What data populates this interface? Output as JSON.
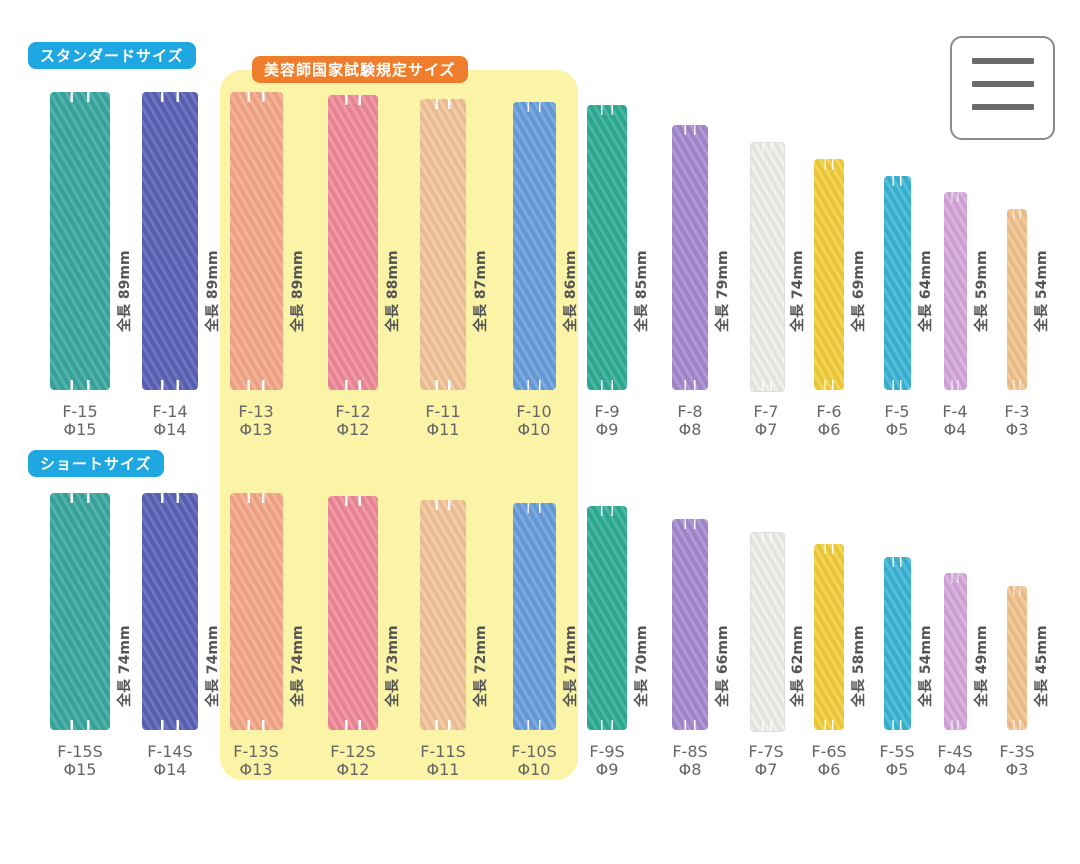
{
  "labels": {
    "standard": "スタンダードサイズ",
    "exam": "美容師国家試験規定サイズ",
    "short": "ショートサイズ"
  },
  "menu": {
    "icon": "hamburger-menu-icon"
  },
  "standard": [
    {
      "code": "F-15",
      "dia": "Φ15",
      "d": 15,
      "length_label": "全長 89mm",
      "mm": 89,
      "color": "#3aa8a0"
    },
    {
      "code": "F-14",
      "dia": "Φ14",
      "d": 14,
      "length_label": "全長 89mm",
      "mm": 89,
      "color": "#5b63b8"
    },
    {
      "code": "F-13",
      "dia": "Φ13",
      "d": 13,
      "length_label": "全長 89mm",
      "mm": 89,
      "color": "#f5a98a"
    },
    {
      "code": "F-12",
      "dia": "Φ12",
      "d": 12,
      "length_label": "全長 88mm",
      "mm": 88,
      "color": "#f08a9a"
    },
    {
      "code": "F-11",
      "dia": "Φ11",
      "d": 11,
      "length_label": "全長 87mm",
      "mm": 87,
      "color": "#f2c59a"
    },
    {
      "code": "F-10",
      "dia": "Φ10",
      "d": 10,
      "length_label": "全長 86mm",
      "mm": 86,
      "color": "#6a9fde"
    },
    {
      "code": "F-9",
      "dia": "Φ9",
      "d": 9,
      "length_label": "全長 85mm",
      "mm": 85,
      "color": "#2fae97"
    },
    {
      "code": "F-8",
      "dia": "Φ8",
      "d": 8,
      "length_label": "全長 79mm",
      "mm": 79,
      "color": "#a68ad0"
    },
    {
      "code": "F-7",
      "dia": "Φ7",
      "d": 7,
      "length_label": "全長 74mm",
      "mm": 74,
      "color": "#eeeeea"
    },
    {
      "code": "F-6",
      "dia": "Φ6",
      "d": 6,
      "length_label": "全長 69mm",
      "mm": 69,
      "color": "#f4cf3d"
    },
    {
      "code": "F-5",
      "dia": "Φ5",
      "d": 5,
      "length_label": "全長 64mm",
      "mm": 64,
      "color": "#3bb6d6"
    },
    {
      "code": "F-4",
      "dia": "Φ4",
      "d": 4,
      "length_label": "全長 59mm",
      "mm": 59,
      "color": "#d6a8dc"
    },
    {
      "code": "F-3",
      "dia": "Φ3",
      "d": 3,
      "length_label": "全長 54mm",
      "mm": 54,
      "color": "#f4c48f"
    }
  ],
  "short": [
    {
      "code": "F-15S",
      "dia": "Φ15",
      "d": 15,
      "length_label": "全長 74mm",
      "mm": 74,
      "color": "#3aa8a0"
    },
    {
      "code": "F-14S",
      "dia": "Φ14",
      "d": 14,
      "length_label": "全長 74mm",
      "mm": 74,
      "color": "#5b63b8"
    },
    {
      "code": "F-13S",
      "dia": "Φ13",
      "d": 13,
      "length_label": "全長 74mm",
      "mm": 74,
      "color": "#f5a98a"
    },
    {
      "code": "F-12S",
      "dia": "Φ12",
      "d": 12,
      "length_label": "全長 73mm",
      "mm": 73,
      "color": "#f08a9a"
    },
    {
      "code": "F-11S",
      "dia": "Φ11",
      "d": 11,
      "length_label": "全長 72mm",
      "mm": 72,
      "color": "#f2c59a"
    },
    {
      "code": "F-10S",
      "dia": "Φ10",
      "d": 10,
      "length_label": "全長 71mm",
      "mm": 71,
      "color": "#6a9fde"
    },
    {
      "code": "F-9S",
      "dia": "Φ9",
      "d": 9,
      "length_label": "全長 70mm",
      "mm": 70,
      "color": "#2fae97"
    },
    {
      "code": "F-8S",
      "dia": "Φ8",
      "d": 8,
      "length_label": "全長 66mm",
      "mm": 66,
      "color": "#a68ad0"
    },
    {
      "code": "F-7S",
      "dia": "Φ7",
      "d": 7,
      "length_label": "全長 62mm",
      "mm": 62,
      "color": "#eeeeea"
    },
    {
      "code": "F-6S",
      "dia": "Φ6",
      "d": 6,
      "length_label": "全長 58mm",
      "mm": 58,
      "color": "#f4cf3d"
    },
    {
      "code": "F-5S",
      "dia": "Φ5",
      "d": 5,
      "length_label": "全長 54mm",
      "mm": 54,
      "color": "#3bb6d6"
    },
    {
      "code": "F-4S",
      "dia": "Φ4",
      "d": 4,
      "length_label": "全長 49mm",
      "mm": 49,
      "color": "#d6a8dc"
    },
    {
      "code": "F-3S",
      "dia": "Φ3",
      "d": 3,
      "length_label": "全長 45mm",
      "mm": 45,
      "color": "#f4c48f"
    }
  ]
}
